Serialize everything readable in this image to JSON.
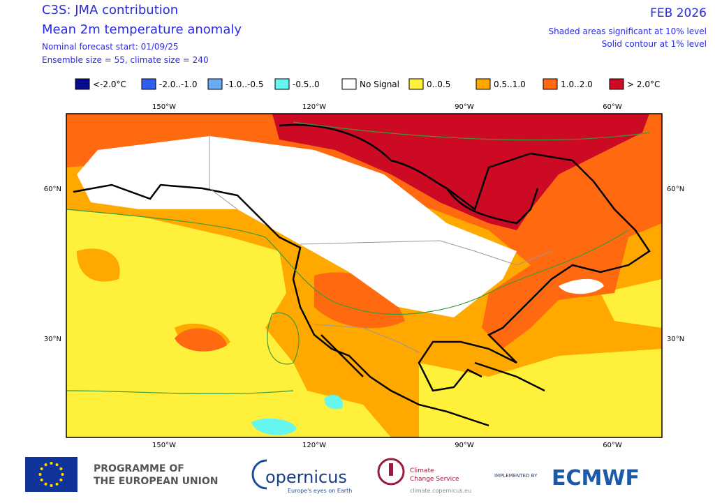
{
  "header": {
    "title": "C3S: JMA contribution",
    "subtitle": "Mean 2m temperature anomaly",
    "forecast_start": "Nominal forecast start: 01/09/25",
    "ensemble": "Ensemble size = 55, climate size = 240",
    "month": "FEB 2026",
    "note_shading": "Shaded areas significant at 10% level",
    "note_contour": "Solid contour at 1% level"
  },
  "legend": [
    {
      "label": "<-2.0°C",
      "color": "#0a0a8c"
    },
    {
      "label": "-2.0..-1.0",
      "color": "#2f5ff0"
    },
    {
      "label": "-1.0..-0.5",
      "color": "#6aaaf0"
    },
    {
      "label": "-0.5..0",
      "color": "#66f5ef"
    },
    {
      "label": "No Signal",
      "color": "#ffffff"
    },
    {
      "label": "0..0.5",
      "color": "#fff03c"
    },
    {
      "label": "0.5..1.0",
      "color": "#ffa800"
    },
    {
      "label": "1.0..2.0",
      "color": "#ff6a10"
    },
    {
      "label": "> 2.0°C",
      "color": "#cc0a24"
    }
  ],
  "map": {
    "lon_labels": [
      "150°W",
      "120°W",
      "90°W",
      "60°W"
    ],
    "lat_labels": [
      "60°N",
      "30°N"
    ]
  },
  "footer": {
    "eu_line1": "PROGRAMME OF",
    "eu_line2": "THE EUROPEAN UNION",
    "copernicus": "opernicus",
    "copernicus_tag": "Europe's eyes on Earth",
    "c3s_line1": "Climate",
    "c3s_line2": "Change Service",
    "c3s_url": "climate.copernicus.eu",
    "implemented": "IMPLEMENTED BY",
    "ecmwf": "ECMWF"
  }
}
